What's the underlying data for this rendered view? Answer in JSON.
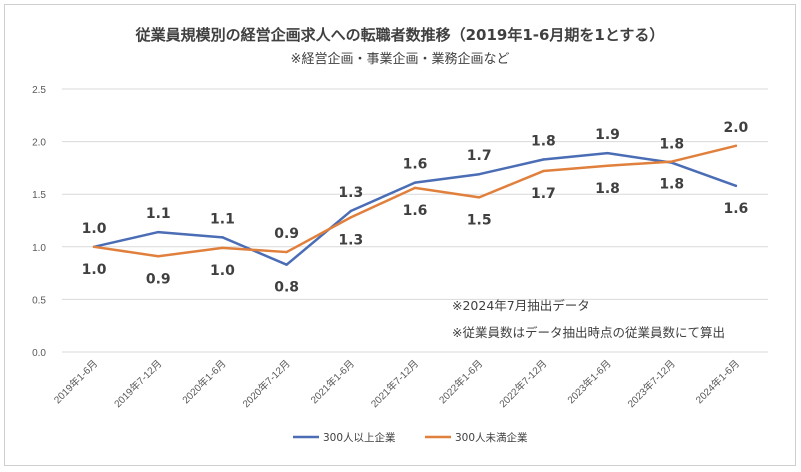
{
  "chart_data": {
    "type": "line",
    "title": "従業員規模別の経営企画求人への転職者数推移（2019年1-6月期を1とする）",
    "subtitle": "※経営企画・事業企画・業務企画など",
    "categories": [
      "2019年1-6月",
      "2019年7-12月",
      "2020年1-6月",
      "2020年7-12月",
      "2021年1-6月",
      "2021年7-12月",
      "2022年1-6月",
      "2022年7-12月",
      "2023年1-6月",
      "2023年7-12月",
      "2024年1-6月"
    ],
    "yticks": [
      "0.0",
      "0.5",
      "1.0",
      "1.5",
      "2.0",
      "2.5"
    ],
    "ylim": [
      0,
      2.5
    ],
    "grid": true,
    "legend_position": "bottom",
    "series": [
      {
        "name": "300人以上企業",
        "color": "#4a6db5",
        "values": [
          1.0,
          1.14,
          1.09,
          0.83,
          1.34,
          1.61,
          1.69,
          1.83,
          1.89,
          1.8,
          1.58
        ],
        "labels": [
          "1.0",
          "1.1",
          "1.1",
          "0.8",
          "1.3",
          "1.6",
          "1.7",
          "1.8",
          "1.9",
          "1.8",
          "1.6"
        ],
        "label_side": [
          "above",
          "above",
          "above",
          "below",
          "above",
          "above",
          "above",
          "above",
          "above",
          "above",
          "below"
        ]
      },
      {
        "name": "300人未満企業",
        "color": "#e0803c",
        "values": [
          1.0,
          0.91,
          0.99,
          0.95,
          1.28,
          1.56,
          1.47,
          1.72,
          1.77,
          1.81,
          1.96
        ],
        "labels": [
          "1.0",
          "0.9",
          "1.0",
          "0.9",
          "1.3",
          "1.6",
          "1.5",
          "1.7",
          "1.8",
          "1.8",
          "2.0"
        ],
        "label_side": [
          "below",
          "below",
          "below",
          "above",
          "below",
          "below",
          "below",
          "below",
          "below",
          "below",
          "above"
        ]
      }
    ],
    "notes": [
      "※2024年7月抽出データ",
      "※従業員数はデータ抽出時点の従業員数にて算出"
    ]
  }
}
